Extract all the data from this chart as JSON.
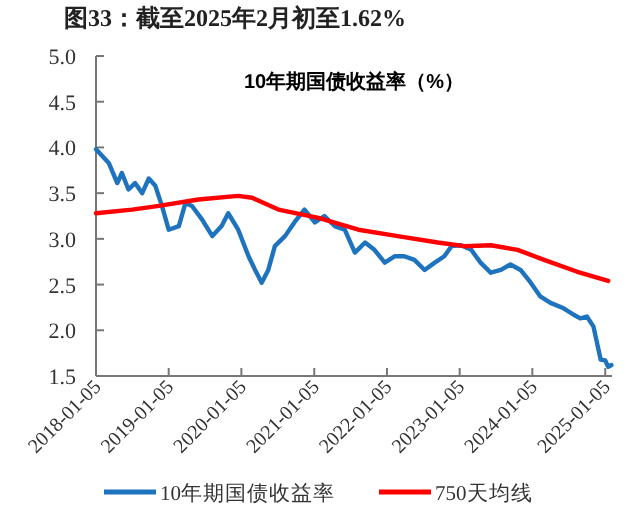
{
  "chart_data": {
    "type": "line",
    "title": "图33：截至2025年2月初至1.62%",
    "subtitle": "10年期国债收益率（%）",
    "xlim": [
      "2018-01-05",
      "2025-02-08"
    ],
    "xticks": [
      "2018-01-05",
      "2019-01-05",
      "2020-01-05",
      "2021-01-05",
      "2022-01-05",
      "2023-01-05",
      "2024-01-05",
      "2025-01-05"
    ],
    "ylim": [
      1.5,
      5.0
    ],
    "yticks": [
      {
        "value": 1.5,
        "label": "1.5"
      },
      {
        "value": 2,
        "label": "2.0"
      },
      {
        "value": 2.5,
        "label": "2.5"
      },
      {
        "value": 3,
        "label": "3.0"
      },
      {
        "value": 3.5,
        "label": "3.5"
      },
      {
        "value": 4,
        "label": "4.0"
      },
      {
        "value": 4.5,
        "label": "4.5"
      },
      {
        "value": 5,
        "label": "5.0"
      }
    ],
    "grid": false,
    "legend": "bottom",
    "marker": "none",
    "line_style": "solid",
    "series": [
      {
        "name": "10年期国债收益率",
        "color": "#1e73be",
        "x": [
          "2018-01-05",
          "2018-03-10",
          "2018-04-22",
          "2018-05-15",
          "2018-06-17",
          "2018-07-20",
          "2018-08-25",
          "2018-09-27",
          "2018-10-30",
          "2018-12-02",
          "2019-01-05",
          "2019-02-25",
          "2019-03-30",
          "2019-05-02",
          "2019-06-22",
          "2019-08-12",
          "2019-09-28",
          "2019-10-31",
          "2019-12-20",
          "2020-02-10",
          "2020-03-14",
          "2020-04-16",
          "2020-05-19",
          "2020-06-21",
          "2020-08-11",
          "2020-09-27",
          "2020-11-17",
          "2021-01-08",
          "2021-02-25",
          "2021-04-17",
          "2021-06-07",
          "2021-07-28",
          "2021-09-17",
          "2021-11-03",
          "2021-12-25",
          "2022-02-14",
          "2022-04-02",
          "2022-05-23",
          "2022-07-13",
          "2022-09-02",
          "2022-10-20",
          "2022-11-25",
          "2023-01-12",
          "2023-03-04",
          "2023-04-20",
          "2023-06-10",
          "2023-07-31",
          "2023-09-17",
          "2023-11-07",
          "2023-12-28",
          "2024-02-14",
          "2024-04-05",
          "2024-06-10",
          "2024-07-31",
          "2024-09-02",
          "2024-10-05",
          "2024-11-07",
          "2024-12-13",
          "2025-01-05",
          "2025-01-20",
          "2025-02-05"
        ],
        "values": [
          3.98,
          3.83,
          3.61,
          3.72,
          3.54,
          3.61,
          3.5,
          3.66,
          3.58,
          3.36,
          3.1,
          3.14,
          3.39,
          3.36,
          3.21,
          3.03,
          3.14,
          3.28,
          3.1,
          2.81,
          2.66,
          2.52,
          2.66,
          2.92,
          3.03,
          3.18,
          3.32,
          3.18,
          3.25,
          3.14,
          3.1,
          2.85,
          2.96,
          2.88,
          2.74,
          2.81,
          2.81,
          2.77,
          2.66,
          2.74,
          2.81,
          2.92,
          2.93,
          2.88,
          2.74,
          2.63,
          2.66,
          2.72,
          2.66,
          2.52,
          2.37,
          2.3,
          2.24,
          2.17,
          2.13,
          2.15,
          2.04,
          1.68,
          1.67,
          1.6,
          1.62
        ]
      },
      {
        "name": "750天均线",
        "color": "#ff0000",
        "x": [
          "2018-01-05",
          "2018-07-05",
          "2018-11-17",
          "2019-06-03",
          "2019-12-20",
          "2020-02-28",
          "2020-07-09",
          "2021-01-26",
          "2021-08-15",
          "2022-02-28",
          "2022-09-17",
          "2023-01-30",
          "2023-06-10",
          "2023-10-23",
          "2024-03-04",
          "2024-08-18",
          "2025-01-20"
        ],
        "values": [
          3.28,
          3.32,
          3.36,
          3.43,
          3.47,
          3.45,
          3.32,
          3.23,
          3.1,
          3.03,
          2.96,
          2.92,
          2.93,
          2.88,
          2.77,
          2.64,
          2.54
        ]
      }
    ]
  }
}
